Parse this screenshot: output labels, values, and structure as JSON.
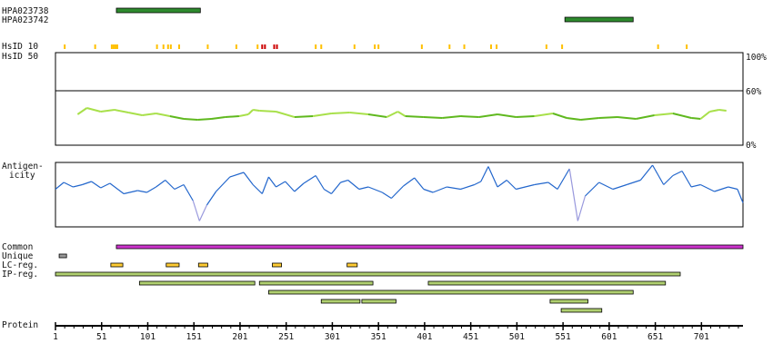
{
  "sequence_length": 746,
  "antibodies": [
    {
      "name": "HPA023738",
      "start": 67,
      "end": 158,
      "color": "#2e8b2e"
    },
    {
      "name": "HPA023742",
      "start": 553,
      "end": 627,
      "color": "#2e8b2e"
    }
  ],
  "hsid_labels": {
    "hsid10": "HsID 10",
    "hsid50": "HsID 50"
  },
  "hsid_marks": [
    {
      "pos": 11,
      "level": "low"
    },
    {
      "pos": 44,
      "level": "low"
    },
    {
      "pos": 62,
      "level": "low"
    },
    {
      "pos": 64,
      "level": "low"
    },
    {
      "pos": 66,
      "level": "low"
    },
    {
      "pos": 68,
      "level": "low"
    },
    {
      "pos": 111,
      "level": "low"
    },
    {
      "pos": 118,
      "level": "low"
    },
    {
      "pos": 123,
      "level": "low"
    },
    {
      "pos": 126,
      "level": "low"
    },
    {
      "pos": 135,
      "level": "low"
    },
    {
      "pos": 166,
      "level": "low"
    },
    {
      "pos": 197,
      "level": "low"
    },
    {
      "pos": 220,
      "level": "low"
    },
    {
      "pos": 225,
      "level": "high"
    },
    {
      "pos": 228,
      "level": "high"
    },
    {
      "pos": 238,
      "level": "high"
    },
    {
      "pos": 241,
      "level": "high"
    },
    {
      "pos": 283,
      "level": "low"
    },
    {
      "pos": 289,
      "level": "low"
    },
    {
      "pos": 325,
      "level": "low"
    },
    {
      "pos": 347,
      "level": "low"
    },
    {
      "pos": 351,
      "level": "low"
    },
    {
      "pos": 398,
      "level": "low"
    },
    {
      "pos": 428,
      "level": "low"
    },
    {
      "pos": 444,
      "level": "low"
    },
    {
      "pos": 473,
      "level": "low"
    },
    {
      "pos": 479,
      "level": "low"
    },
    {
      "pos": 533,
      "level": "low"
    },
    {
      "pos": 550,
      "level": "low"
    },
    {
      "pos": 654,
      "level": "low"
    },
    {
      "pos": 685,
      "level": "low"
    }
  ],
  "hsid_colors": {
    "low": "#ffc000",
    "high": "#cc0000"
  },
  "identity_plot": {
    "axis_labels": [
      "100%",
      "60%",
      "0%"
    ],
    "start": 25,
    "end": 728,
    "points": [
      [
        25,
        33
      ],
      [
        35,
        40
      ],
      [
        50,
        36
      ],
      [
        65,
        38
      ],
      [
        80,
        35
      ],
      [
        95,
        32
      ],
      [
        110,
        34
      ],
      [
        125,
        31
      ],
      [
        140,
        28
      ],
      [
        155,
        27
      ],
      [
        170,
        28
      ],
      [
        185,
        30
      ],
      [
        200,
        31
      ],
      [
        210,
        33
      ],
      [
        215,
        38
      ],
      [
        222,
        37
      ],
      [
        240,
        36
      ],
      [
        260,
        30
      ],
      [
        280,
        31
      ],
      [
        300,
        34
      ],
      [
        320,
        35
      ],
      [
        340,
        33
      ],
      [
        360,
        30
      ],
      [
        372,
        36
      ],
      [
        380,
        31
      ],
      [
        400,
        30
      ],
      [
        420,
        29
      ],
      [
        440,
        31
      ],
      [
        460,
        30
      ],
      [
        480,
        33
      ],
      [
        500,
        30
      ],
      [
        520,
        31
      ],
      [
        540,
        34
      ],
      [
        555,
        29
      ],
      [
        570,
        27
      ],
      [
        590,
        29
      ],
      [
        610,
        30
      ],
      [
        630,
        28
      ],
      [
        650,
        32
      ],
      [
        670,
        34
      ],
      [
        690,
        29
      ],
      [
        700,
        28
      ],
      [
        710,
        36
      ],
      [
        720,
        38
      ],
      [
        728,
        37
      ]
    ],
    "color_high": "#a8e04a",
    "color_low": "#5fb81e",
    "threshold": 32
  },
  "antigenicity": {
    "label_line1": "Antigen-",
    "label_line2": "icity",
    "points": [
      [
        1,
        0.55
      ],
      [
        10,
        0.4
      ],
      [
        20,
        0.5
      ],
      [
        30,
        0.45
      ],
      [
        40,
        0.38
      ],
      [
        50,
        0.52
      ],
      [
        60,
        0.42
      ],
      [
        75,
        0.65
      ],
      [
        90,
        0.58
      ],
      [
        100,
        0.62
      ],
      [
        110,
        0.5
      ],
      [
        120,
        0.35
      ],
      [
        130,
        0.55
      ],
      [
        140,
        0.45
      ],
      [
        150,
        0.8
      ],
      [
        157,
        1.25
      ],
      [
        165,
        0.9
      ],
      [
        175,
        0.6
      ],
      [
        190,
        0.28
      ],
      [
        205,
        0.18
      ],
      [
        215,
        0.45
      ],
      [
        225,
        0.65
      ],
      [
        232,
        0.28
      ],
      [
        240,
        0.5
      ],
      [
        250,
        0.38
      ],
      [
        260,
        0.6
      ],
      [
        270,
        0.42
      ],
      [
        283,
        0.25
      ],
      [
        292,
        0.55
      ],
      [
        300,
        0.65
      ],
      [
        310,
        0.4
      ],
      [
        318,
        0.35
      ],
      [
        330,
        0.55
      ],
      [
        340,
        0.5
      ],
      [
        355,
        0.62
      ],
      [
        365,
        0.75
      ],
      [
        378,
        0.48
      ],
      [
        390,
        0.3
      ],
      [
        400,
        0.55
      ],
      [
        410,
        0.62
      ],
      [
        425,
        0.5
      ],
      [
        440,
        0.55
      ],
      [
        455,
        0.45
      ],
      [
        462,
        0.38
      ],
      [
        470,
        0.05
      ],
      [
        480,
        0.5
      ],
      [
        490,
        0.35
      ],
      [
        500,
        0.55
      ],
      [
        520,
        0.45
      ],
      [
        535,
        0.4
      ],
      [
        545,
        0.55
      ],
      [
        558,
        0.1
      ],
      [
        567,
        1.25
      ],
      [
        575,
        0.7
      ],
      [
        590,
        0.4
      ],
      [
        605,
        0.55
      ],
      [
        620,
        0.45
      ],
      [
        635,
        0.35
      ],
      [
        648,
        0.02
      ],
      [
        660,
        0.45
      ],
      [
        670,
        0.25
      ],
      [
        680,
        0.15
      ],
      [
        690,
        0.5
      ],
      [
        700,
        0.45
      ],
      [
        715,
        0.6
      ],
      [
        730,
        0.5
      ],
      [
        740,
        0.55
      ],
      [
        746,
        0.85
      ]
    ],
    "color": "#2266cc",
    "color_low": "#9999dd"
  },
  "tracks": {
    "common": {
      "label": "Common",
      "color": "#cc33cc",
      "ranges": [
        [
          67,
          746
        ]
      ]
    },
    "unique": {
      "label": "Unique",
      "color": "#999999",
      "ranges": [
        [
          5,
          13
        ]
      ]
    },
    "lcreg": {
      "label": "LC-reg.",
      "color": "#ffcc33",
      "ranges": [
        [
          61,
          74
        ],
        [
          121,
          135
        ],
        [
          156,
          166
        ],
        [
          236,
          246
        ],
        [
          317,
          328
        ]
      ]
    },
    "ipreg": {
      "label": "IP-reg.",
      "color": "#b0d070",
      "rows": [
        [
          [
            1,
            678
          ]
        ],
        [
          [
            92,
            217
          ],
          [
            222,
            345
          ],
          [
            405,
            662
          ]
        ],
        [
          [
            232,
            627
          ]
        ],
        [
          [
            289,
            331
          ],
          [
            333,
            370
          ],
          [
            537,
            578
          ]
        ],
        [
          [
            549,
            593
          ]
        ]
      ]
    }
  },
  "protein_label": "Protein",
  "ticks": [
    "1",
    "51",
    "101",
    "151",
    "201",
    "251",
    "301",
    "351",
    "401",
    "451",
    "501",
    "551",
    "601",
    "651",
    "701"
  ]
}
